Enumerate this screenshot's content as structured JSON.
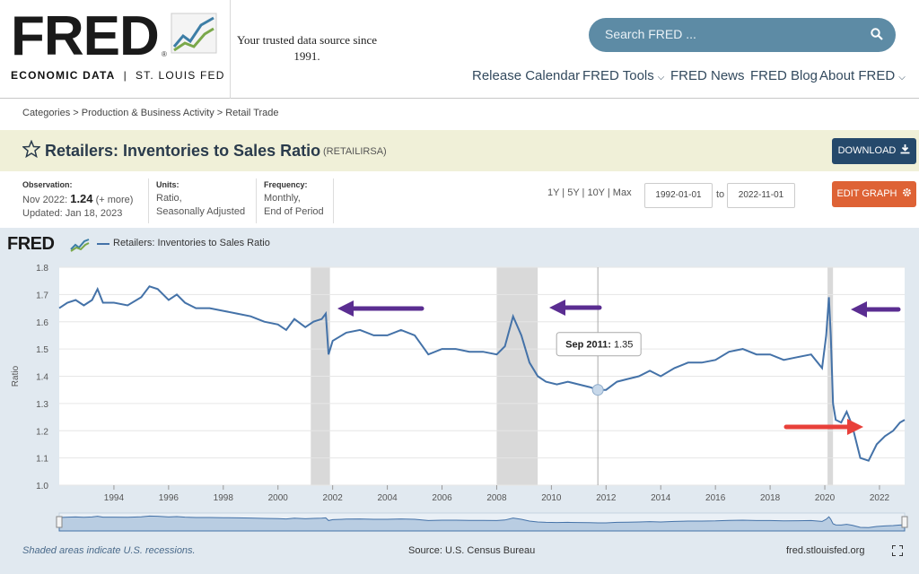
{
  "header": {
    "logo_text": "FRED",
    "logo_sub_left": "ECONOMIC DATA",
    "logo_sub_sep": "|",
    "logo_sub_right": "ST. LOUIS FED",
    "tagline": "Your trusted data source since 1991.",
    "search_placeholder": "Search FRED ...",
    "nav": [
      {
        "label": "Release Calendar",
        "dropdown": false
      },
      {
        "label": "FRED Tools",
        "dropdown": true
      },
      {
        "label": "FRED News",
        "dropdown": false
      },
      {
        "label": "FRED Blog",
        "dropdown": false
      },
      {
        "label": "About FRED",
        "dropdown": true
      }
    ]
  },
  "breadcrumb": "Categories > Production & Business Activity > Retail Trade",
  "series": {
    "title": "Retailers: Inventories to Sales Ratio",
    "id": "(RETAILIRSA)",
    "download_label": "DOWNLOAD"
  },
  "meta": {
    "observation_label": "Observation:",
    "observation_date": "Nov 2022:",
    "observation_value": "1.24",
    "observation_more": "(+ more)",
    "updated": "Updated: Jan 18, 2023",
    "units_label": "Units:",
    "units_line1": "Ratio,",
    "units_line2": "Seasonally Adjusted",
    "frequency_label": "Frequency:",
    "frequency_line1": "Monthly,",
    "frequency_line2": "End of Period"
  },
  "controls": {
    "ranges": "1Y | 5Y | 10Y | Max",
    "start_date": "1992-01-01",
    "to": "to",
    "end_date": "2022-11-01",
    "edit_label": "EDIT GRAPH"
  },
  "graph": {
    "legend": "Retailers: Inventories to Sales Ratio",
    "tooltip_date": "Sep 2011:",
    "tooltip_value": "1.35",
    "footer_recessions": "Shaded areas indicate U.S. recessions.",
    "footer_source": "Source: U.S. Census Bureau",
    "footer_site": "fred.stlouisfed.org"
  },
  "colors": {
    "line": "#4472a8",
    "arrow_purple": "#5a2d91",
    "arrow_red": "#e8403a",
    "recession": "#d9d9d9"
  },
  "chart_data": {
    "type": "line",
    "ylabel": "Ratio",
    "ylim": [
      1.0,
      1.8
    ],
    "yticks": [
      "1.0",
      "1.1",
      "1.2",
      "1.3",
      "1.4",
      "1.5",
      "1.6",
      "1.7",
      "1.8"
    ],
    "xlim": [
      1992.0,
      2022.92
    ],
    "xticks": [
      "1994",
      "1996",
      "1998",
      "2000",
      "2002",
      "2004",
      "2006",
      "2008",
      "2010",
      "2012",
      "2014",
      "2016",
      "2018",
      "2020",
      "2022"
    ],
    "recessions": [
      [
        2001.2,
        2001.9
      ],
      [
        2008.0,
        2009.5
      ],
      [
        2020.1,
        2020.3
      ]
    ],
    "series": [
      {
        "name": "Retailers: Inventories to Sales Ratio",
        "x": [
          1992.0,
          1992.3,
          1992.6,
          1992.9,
          1993.2,
          1993.4,
          1993.6,
          1994.0,
          1994.5,
          1995.0,
          1995.3,
          1995.6,
          1996.0,
          1996.3,
          1996.6,
          1997.0,
          1997.5,
          1998.0,
          1998.5,
          1999.0,
          1999.5,
          2000.0,
          2000.3,
          2000.6,
          2001.0,
          2001.3,
          2001.6,
          2001.75,
          2001.85,
          2002.0,
          2002.5,
          2003.0,
          2003.5,
          2004.0,
          2004.5,
          2005.0,
          2005.5,
          2006.0,
          2006.5,
          2007.0,
          2007.5,
          2008.0,
          2008.3,
          2008.6,
          2008.9,
          2009.2,
          2009.5,
          2009.8,
          2010.2,
          2010.6,
          2011.0,
          2011.4,
          2011.7,
          2012.0,
          2012.4,
          2012.8,
          2013.2,
          2013.6,
          2014.0,
          2014.5,
          2015.0,
          2015.5,
          2016.0,
          2016.5,
          2017.0,
          2017.5,
          2018.0,
          2018.5,
          2019.0,
          2019.5,
          2019.9,
          2020.05,
          2020.15,
          2020.22,
          2020.3,
          2020.4,
          2020.6,
          2020.8,
          2021.0,
          2021.3,
          2021.6,
          2021.9,
          2022.2,
          2022.5,
          2022.75,
          2022.92
        ],
        "values": [
          1.65,
          1.67,
          1.68,
          1.66,
          1.68,
          1.72,
          1.67,
          1.67,
          1.66,
          1.69,
          1.73,
          1.72,
          1.68,
          1.7,
          1.67,
          1.65,
          1.65,
          1.64,
          1.63,
          1.62,
          1.6,
          1.59,
          1.57,
          1.61,
          1.58,
          1.6,
          1.61,
          1.63,
          1.48,
          1.53,
          1.56,
          1.57,
          1.55,
          1.55,
          1.57,
          1.55,
          1.48,
          1.5,
          1.5,
          1.49,
          1.49,
          1.48,
          1.51,
          1.62,
          1.55,
          1.45,
          1.4,
          1.38,
          1.37,
          1.38,
          1.37,
          1.36,
          1.35,
          1.35,
          1.38,
          1.39,
          1.4,
          1.42,
          1.4,
          1.43,
          1.45,
          1.45,
          1.46,
          1.49,
          1.5,
          1.48,
          1.48,
          1.46,
          1.47,
          1.48,
          1.43,
          1.55,
          1.69,
          1.55,
          1.3,
          1.24,
          1.23,
          1.27,
          1.22,
          1.1,
          1.09,
          1.15,
          1.18,
          1.2,
          1.23,
          1.24
        ]
      }
    ]
  }
}
